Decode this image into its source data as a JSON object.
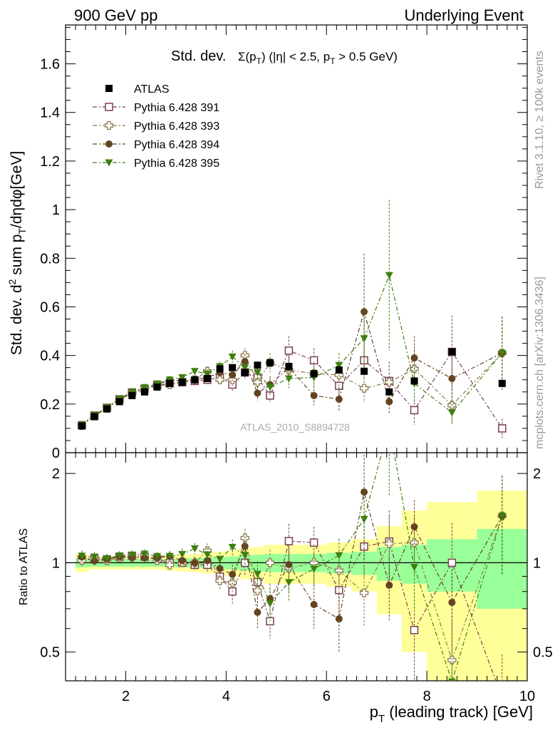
{
  "header": {
    "left": "900 GeV pp",
    "right": "Underlying Event"
  },
  "side_labels": {
    "rivet": "Rivet 3.1.10, ≥ 100k events",
    "mcplots": "mcplots.cern.ch [arXiv:1306.3436]"
  },
  "title": {
    "main": "Std. dev.",
    "formula": "Σ(p_T) (|η| < 2.5, p_T > 0.5 GeV)"
  },
  "ylabel_main": "Std. dev. d² sum p_T/dηdφ[GeV]",
  "ylabel_ratio": "Ratio to ATLAS",
  "xlabel": "p_T (leading track) [GeV]",
  "watermark": "ATLAS_2010_S8894728",
  "chart_data": {
    "type": "scatter",
    "xlim": [
      0.8,
      10.0
    ],
    "ylim_main": [
      0,
      1.76
    ],
    "ylim_ratio": [
      0.4,
      2.35
    ],
    "ratio_log_scale": true,
    "legend_position": "top-left",
    "x_ticks": [
      2,
      4,
      6,
      8,
      10
    ],
    "y_ticks_main": [
      0,
      0.2,
      0.4,
      0.6,
      0.8,
      1,
      1.2,
      1.4,
      1.6
    ],
    "y_ticks_ratio": [
      0.5,
      1,
      2
    ],
    "x_centers": [
      1.125,
      1.375,
      1.625,
      1.875,
      2.125,
      2.375,
      2.625,
      2.875,
      3.125,
      3.375,
      3.625,
      3.875,
      4.125,
      4.375,
      4.625,
      4.875,
      5.25,
      5.75,
      6.25,
      6.75,
      7.25,
      7.75,
      8.5,
      9.5
    ],
    "x_edges": [
      1.0,
      1.25,
      1.5,
      1.75,
      2.0,
      2.25,
      2.5,
      2.75,
      3.0,
      3.25,
      3.5,
      3.75,
      4.0,
      4.25,
      4.5,
      4.75,
      5.0,
      5.5,
      6.0,
      6.5,
      7.0,
      7.5,
      8.0,
      9.0,
      10.0
    ],
    "band_inner": [
      0.035,
      0.03,
      0.03,
      0.03,
      0.03,
      0.03,
      0.03,
      0.03,
      0.035,
      0.035,
      0.04,
      0.045,
      0.05,
      0.06,
      0.065,
      0.07,
      0.07,
      0.07,
      0.08,
      0.09,
      0.13,
      0.15,
      0.2,
      0.3
    ],
    "band_outer": [
      0.07,
      0.05,
      0.05,
      0.05,
      0.05,
      0.05,
      0.05,
      0.06,
      0.065,
      0.07,
      0.08,
      0.09,
      0.1,
      0.12,
      0.13,
      0.15,
      0.15,
      0.15,
      0.17,
      0.2,
      0.33,
      0.5,
      0.6,
      0.75
    ],
    "atlas": [
      0.11,
      0.148,
      0.18,
      0.21,
      0.235,
      0.25,
      0.27,
      0.285,
      0.29,
      0.3,
      0.305,
      0.345,
      0.35,
      0.33,
      0.36,
      0.37,
      0.355,
      0.325,
      0.34,
      0.335,
      0.25,
      0.295,
      0.415,
      0.285
    ],
    "series": [
      {
        "name": "Pythia 6.428 391",
        "color": "#7b3f58",
        "marker": "open-square",
        "values": [
          0.113,
          0.153,
          0.185,
          0.22,
          0.248,
          0.262,
          0.278,
          0.285,
          0.29,
          0.295,
          0.3,
          0.31,
          0.28,
          0.33,
          0.31,
          0.235,
          0.42,
          0.38,
          0.275,
          0.38,
          0.295,
          0.175,
          0.415,
          0.1
        ],
        "errors": [
          0.005,
          0.006,
          0.006,
          0.008,
          0.008,
          0.01,
          0.01,
          0.01,
          0.012,
          0.012,
          0.015,
          0.02,
          0.025,
          0.03,
          0.035,
          0.03,
          0.06,
          0.05,
          0.06,
          0.08,
          0.08,
          0.06,
          0.15,
          0.04
        ]
      },
      {
        "name": "Pythia 6.428 393",
        "color": "#8c7a4e",
        "marker": "open-cross",
        "values": [
          0.112,
          0.152,
          0.183,
          0.218,
          0.245,
          0.265,
          0.275,
          0.28,
          0.29,
          0.3,
          0.335,
          0.3,
          0.3,
          0.4,
          0.29,
          0.37,
          0.34,
          0.325,
          0.32,
          0.265,
          0.29,
          0.345,
          0.195,
          0.41
        ],
        "errors": [
          0.005,
          0.006,
          0.006,
          0.008,
          0.008,
          0.01,
          0.01,
          0.012,
          0.012,
          0.015,
          0.02,
          0.02,
          0.025,
          0.03,
          0.035,
          0.04,
          0.06,
          0.05,
          0.05,
          0.06,
          0.07,
          0.08,
          0.07,
          0.15
        ]
      },
      {
        "name": "Pythia 6.428 394",
        "color": "#654321",
        "marker": "filled-circle",
        "values": [
          0.115,
          0.15,
          0.185,
          0.22,
          0.245,
          0.26,
          0.28,
          0.3,
          0.295,
          0.3,
          0.31,
          0.33,
          0.32,
          0.375,
          0.245,
          0.28,
          0.35,
          0.235,
          0.22,
          0.58,
          0.21,
          0.39,
          0.305,
          0.41
        ],
        "errors": [
          0.005,
          0.006,
          0.007,
          0.008,
          0.009,
          0.01,
          0.01,
          0.012,
          0.014,
          0.015,
          0.018,
          0.02,
          0.025,
          0.03,
          0.03,
          0.035,
          0.05,
          0.04,
          0.05,
          0.24,
          0.05,
          0.09,
          0.09,
          0.15
        ]
      },
      {
        "name": "Pythia 6.428 395",
        "color": "#3f7f0f",
        "marker": "filled-triangle-down",
        "values": [
          0.116,
          0.155,
          0.186,
          0.222,
          0.25,
          0.268,
          0.284,
          0.3,
          0.31,
          0.335,
          0.325,
          0.355,
          0.395,
          0.35,
          0.33,
          0.27,
          0.305,
          0.31,
          0.36,
          0.47,
          0.73,
          0.285,
          0.165,
          0.41
        ],
        "errors": [
          0.005,
          0.006,
          0.007,
          0.008,
          0.009,
          0.01,
          0.01,
          0.012,
          0.014,
          0.015,
          0.018,
          0.02,
          0.025,
          0.03,
          0.035,
          0.035,
          0.04,
          0.04,
          0.05,
          0.12,
          0.31,
          0.08,
          0.05,
          0.15
        ]
      }
    ]
  }
}
